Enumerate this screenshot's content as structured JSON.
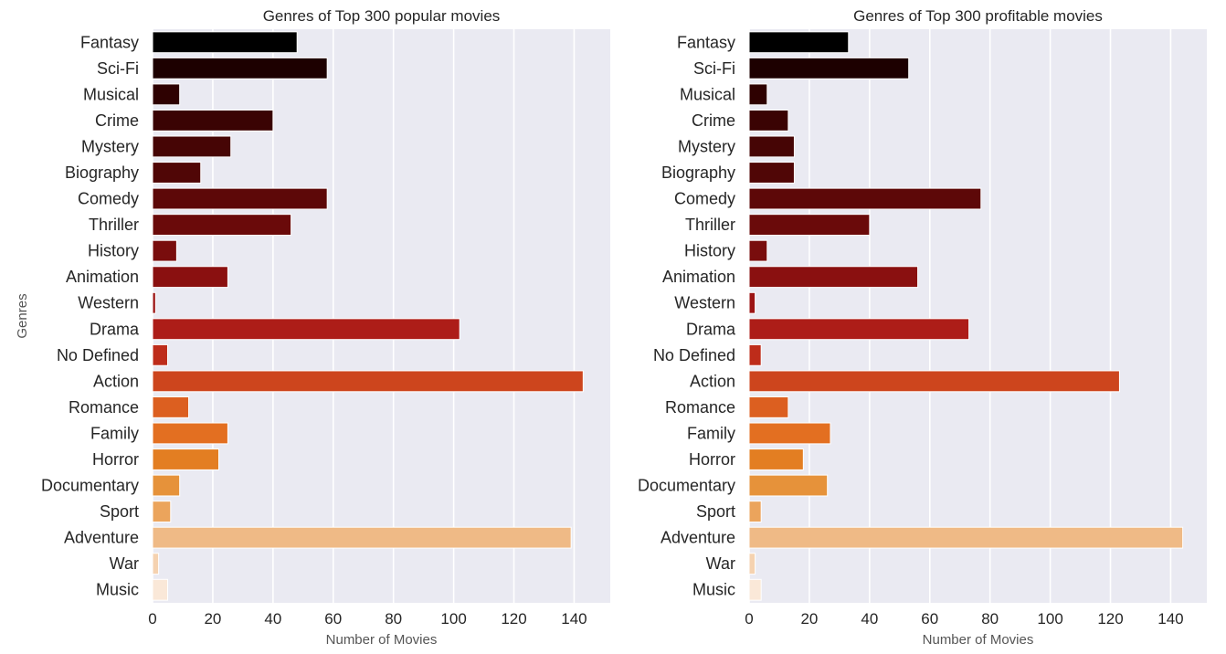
{
  "chart_data": [
    {
      "type": "bar",
      "orientation": "horizontal",
      "title": "Genres of Top 300 popular movies",
      "xlabel": "Number of Movies",
      "ylabel": "Genres",
      "xlim": [
        0,
        152
      ],
      "xticks": [
        0,
        20,
        40,
        60,
        80,
        100,
        120,
        140
      ],
      "grid": true,
      "categories": [
        "Fantasy",
        "Sci-Fi",
        "Musical",
        "Crime",
        "Mystery",
        "Biography",
        "Comedy",
        "Thriller",
        "History",
        "Animation",
        "Western",
        "Drama",
        "No Defined",
        "Action",
        "Romance",
        "Family",
        "Horror",
        "Documentary",
        "Sport",
        "Adventure",
        "War",
        "Music"
      ],
      "values": [
        48,
        58,
        9,
        40,
        26,
        16,
        58,
        46,
        8,
        25,
        1,
        102,
        5,
        143,
        12,
        25,
        22,
        9,
        6,
        139,
        2,
        5
      ]
    },
    {
      "type": "bar",
      "orientation": "horizontal",
      "title": "Genres of Top 300 profitable movies",
      "xlabel": "Number of Movies",
      "ylabel": "",
      "xlim": [
        0,
        152
      ],
      "xticks": [
        0,
        20,
        40,
        60,
        80,
        100,
        120,
        140
      ],
      "grid": true,
      "categories": [
        "Fantasy",
        "Sci-Fi",
        "Musical",
        "Crime",
        "Mystery",
        "Biography",
        "Comedy",
        "Thriller",
        "History",
        "Animation",
        "Western",
        "Drama",
        "No Defined",
        "Action",
        "Romance",
        "Family",
        "Horror",
        "Documentary",
        "Sport",
        "Adventure",
        "War",
        "Music"
      ],
      "values": [
        33,
        53,
        6,
        13,
        15,
        15,
        77,
        40,
        6,
        56,
        2,
        73,
        4,
        123,
        13,
        27,
        18,
        26,
        4,
        144,
        2,
        4
      ]
    }
  ],
  "colors": {
    "background": "#eaeaf2",
    "grid": "#ffffff",
    "bar_palette": [
      "#000000",
      "#1d0000",
      "#2e0101",
      "#3a0303",
      "#460505",
      "#500606",
      "#5d0808",
      "#6a0a0a",
      "#790d0d",
      "#8a1010",
      "#9c1414",
      "#ad1d18",
      "#be2c1a",
      "#cd451d",
      "#dc5f20",
      "#e36f21",
      "#e37e22",
      "#e6923a",
      "#eba45c",
      "#efba86",
      "#f5d2b0",
      "#fae8d8"
    ]
  }
}
